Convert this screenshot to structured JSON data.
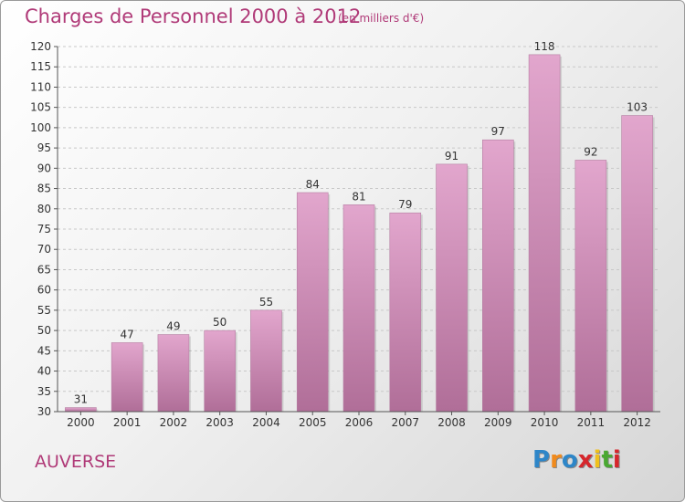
{
  "header": {
    "title": "Charges de Personnel 2000 à 2012",
    "unit": "(en milliers d'€)"
  },
  "footer": {
    "place": "AUVERSE",
    "logo_text": "Proxiti",
    "logo_colors": [
      "#2e86c8",
      "#f08a1c",
      "#2e86c8",
      "#d6262c",
      "#f0c01c",
      "#4aa832",
      "#d6262c"
    ]
  },
  "colors": {
    "bar_top": "#e2a6cd",
    "bar_bottom": "#b06e98",
    "accent": "#b03a78"
  },
  "chart_data": {
    "type": "bar",
    "title": "Charges de Personnel 2000 à 2012",
    "subtitle": "(en milliers d'€)",
    "xlabel": "",
    "ylabel": "",
    "categories": [
      "2000",
      "2001",
      "2002",
      "2003",
      "2004",
      "2005",
      "2006",
      "2007",
      "2008",
      "2009",
      "2010",
      "2011",
      "2012"
    ],
    "values": [
      31,
      47,
      49,
      50,
      55,
      84,
      81,
      79,
      91,
      97,
      118,
      92,
      103
    ],
    "ylim": [
      30,
      120
    ],
    "yticks": [
      30,
      35,
      40,
      45,
      50,
      55,
      60,
      65,
      70,
      75,
      80,
      85,
      90,
      95,
      100,
      105,
      110,
      115,
      120
    ],
    "grid": "horizontal dashed",
    "legend": "none",
    "data_labels": true
  }
}
